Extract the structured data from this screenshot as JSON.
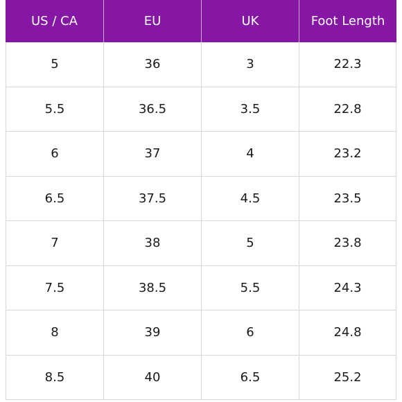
{
  "table": {
    "columns": [
      "US / CA",
      "EU",
      "UK",
      "Foot Length"
    ],
    "rows": [
      [
        "5",
        "36",
        "3",
        "22.3"
      ],
      [
        "5.5",
        "36.5",
        "3.5",
        "22.8"
      ],
      [
        "6",
        "37",
        "4",
        "23.2"
      ],
      [
        "6.5",
        "37.5",
        "4.5",
        "23.5"
      ],
      [
        "7",
        "38",
        "5",
        "23.8"
      ],
      [
        "7.5",
        "38.5",
        "5.5",
        "24.3"
      ],
      [
        "8",
        "39",
        "6",
        "24.8"
      ],
      [
        "8.5",
        "40",
        "6.5",
        "25.2"
      ]
    ]
  },
  "colors": {
    "header_bg": "#8617a4",
    "header_text": "#ffffff",
    "grid_line": "#d7d7d7"
  }
}
